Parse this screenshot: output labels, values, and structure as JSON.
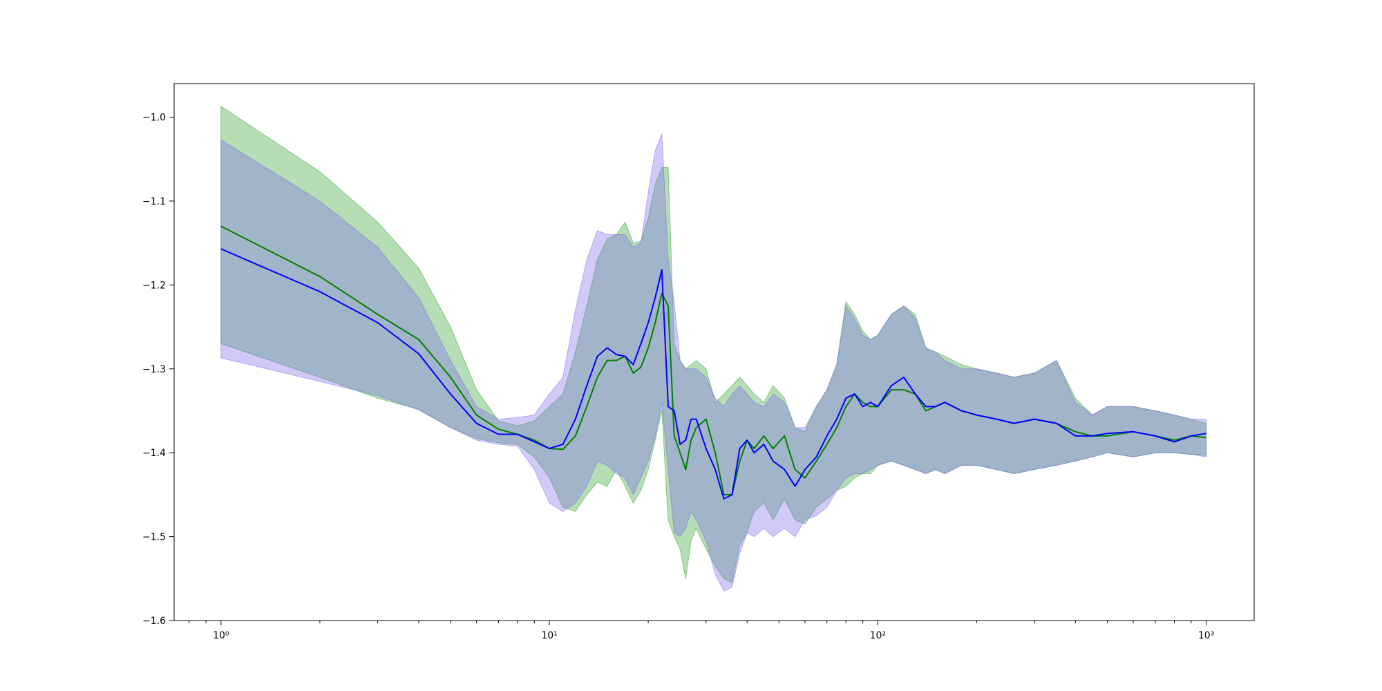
{
  "chart_data": {
    "type": "line",
    "title": "",
    "xlabel": "",
    "ylabel": "",
    "xscale": "log",
    "xlim": [
      0.72,
      1400
    ],
    "ylim": [
      -1.6,
      -0.96
    ],
    "grid": false,
    "legend": "none",
    "x_ticks": [
      {
        "value": 1,
        "label": "10⁰"
      },
      {
        "value": 10,
        "label": "10¹"
      },
      {
        "value": 100,
        "label": "10²"
      },
      {
        "value": 1000,
        "label": "10³"
      }
    ],
    "y_ticks": [
      {
        "value": -1.0,
        "label": "−1.0"
      },
      {
        "value": -1.1,
        "label": "−1.1"
      },
      {
        "value": -1.2,
        "label": "−1.2"
      },
      {
        "value": -1.3,
        "label": "−1.3"
      },
      {
        "value": -1.4,
        "label": "−1.4"
      },
      {
        "value": -1.5,
        "label": "−1.5"
      },
      {
        "value": -1.6,
        "label": "−1.6"
      }
    ],
    "series": [
      {
        "color": "#008000",
        "band_color": "#2ca02c",
        "x": [
          1,
          2,
          3,
          4,
          5,
          6,
          7,
          8,
          9,
          10,
          11,
          12,
          13,
          14,
          15,
          16,
          17,
          18,
          19,
          20,
          21,
          22,
          23,
          24,
          25,
          26,
          27,
          28,
          30,
          32,
          34,
          36,
          38,
          40,
          42,
          45,
          48,
          52,
          56,
          60,
          65,
          70,
          75,
          80,
          85,
          90,
          95,
          100,
          110,
          120,
          130,
          140,
          150,
          160,
          180,
          200,
          230,
          260,
          300,
          350,
          400,
          450,
          500,
          600,
          700,
          800,
          900,
          1000
        ],
        "values": [
          -1.13,
          -1.19,
          -1.235,
          -1.265,
          -1.31,
          -1.355,
          -1.372,
          -1.378,
          -1.385,
          -1.395,
          -1.396,
          -1.38,
          -1.345,
          -1.31,
          -1.29,
          -1.29,
          -1.285,
          -1.305,
          -1.298,
          -1.275,
          -1.245,
          -1.21,
          -1.225,
          -1.38,
          -1.4,
          -1.42,
          -1.385,
          -1.37,
          -1.36,
          -1.4,
          -1.45,
          -1.45,
          -1.41,
          -1.385,
          -1.395,
          -1.38,
          -1.395,
          -1.38,
          -1.42,
          -1.43,
          -1.41,
          -1.39,
          -1.37,
          -1.345,
          -1.33,
          -1.34,
          -1.345,
          -1.345,
          -1.325,
          -1.325,
          -1.33,
          -1.35,
          -1.345,
          -1.34,
          -1.35,
          -1.355,
          -1.36,
          -1.365,
          -1.36,
          -1.365,
          -1.375,
          -1.38,
          -1.38,
          -1.375,
          -1.38,
          -1.385,
          -1.38,
          -1.382
        ],
        "lower": [
          -1.27,
          -1.31,
          -1.335,
          -1.348,
          -1.37,
          -1.383,
          -1.388,
          -1.39,
          -1.405,
          -1.43,
          -1.465,
          -1.47,
          -1.45,
          -1.435,
          -1.44,
          -1.42,
          -1.44,
          -1.46,
          -1.445,
          -1.42,
          -1.385,
          -1.35,
          -1.48,
          -1.5,
          -1.515,
          -1.55,
          -1.505,
          -1.49,
          -1.515,
          -1.535,
          -1.55,
          -1.555,
          -1.51,
          -1.495,
          -1.47,
          -1.46,
          -1.48,
          -1.455,
          -1.48,
          -1.485,
          -1.465,
          -1.455,
          -1.445,
          -1.44,
          -1.43,
          -1.425,
          -1.425,
          -1.415,
          -1.41,
          -1.415,
          -1.42,
          -1.425,
          -1.42,
          -1.425,
          -1.415,
          -1.415,
          -1.42,
          -1.425,
          -1.42,
          -1.415,
          -1.41,
          -1.405,
          -1.4,
          -1.405,
          -1.4,
          -1.4,
          -1.402,
          -1.403
        ],
        "upper": [
          -0.987,
          -1.065,
          -1.125,
          -1.18,
          -1.25,
          -1.325,
          -1.362,
          -1.368,
          -1.362,
          -1.345,
          -1.33,
          -1.28,
          -1.225,
          -1.17,
          -1.145,
          -1.14,
          -1.125,
          -1.15,
          -1.148,
          -1.12,
          -1.08,
          -1.06,
          -1.06,
          -1.27,
          -1.29,
          -1.3,
          -1.295,
          -1.29,
          -1.3,
          -1.34,
          -1.33,
          -1.32,
          -1.31,
          -1.32,
          -1.33,
          -1.34,
          -1.32,
          -1.335,
          -1.37,
          -1.375,
          -1.345,
          -1.325,
          -1.295,
          -1.22,
          -1.235,
          -1.255,
          -1.265,
          -1.26,
          -1.235,
          -1.225,
          -1.235,
          -1.275,
          -1.28,
          -1.285,
          -1.295,
          -1.3,
          -1.305,
          -1.31,
          -1.305,
          -1.29,
          -1.335,
          -1.355,
          -1.345,
          -1.345,
          -1.35,
          -1.355,
          -1.36,
          -1.365
        ]
      },
      {
        "color": "#0000ff",
        "band_color": "#7b68ee",
        "x": [
          1,
          2,
          3,
          4,
          5,
          6,
          7,
          8,
          9,
          10,
          11,
          12,
          13,
          14,
          15,
          16,
          17,
          18,
          19,
          20,
          21,
          22,
          23,
          24,
          25,
          26,
          27,
          28,
          30,
          32,
          34,
          36,
          38,
          40,
          42,
          45,
          48,
          52,
          56,
          60,
          65,
          70,
          75,
          80,
          85,
          90,
          95,
          100,
          110,
          120,
          130,
          140,
          150,
          160,
          180,
          200,
          230,
          260,
          300,
          350,
          400,
          450,
          500,
          600,
          700,
          800,
          900,
          1000
        ],
        "values": [
          -1.157,
          -1.208,
          -1.245,
          -1.282,
          -1.33,
          -1.365,
          -1.378,
          -1.378,
          -1.387,
          -1.395,
          -1.39,
          -1.36,
          -1.32,
          -1.285,
          -1.275,
          -1.283,
          -1.285,
          -1.295,
          -1.27,
          -1.245,
          -1.215,
          -1.182,
          -1.345,
          -1.35,
          -1.39,
          -1.385,
          -1.36,
          -1.36,
          -1.395,
          -1.42,
          -1.455,
          -1.45,
          -1.395,
          -1.385,
          -1.4,
          -1.39,
          -1.41,
          -1.42,
          -1.44,
          -1.42,
          -1.405,
          -1.38,
          -1.36,
          -1.335,
          -1.33,
          -1.345,
          -1.34,
          -1.345,
          -1.32,
          -1.31,
          -1.33,
          -1.345,
          -1.345,
          -1.34,
          -1.35,
          -1.355,
          -1.36,
          -1.365,
          -1.36,
          -1.365,
          -1.38,
          -1.38,
          -1.377,
          -1.375,
          -1.38,
          -1.387,
          -1.38,
          -1.377
        ],
        "lower": [
          -1.287,
          -1.315,
          -1.332,
          -1.349,
          -1.37,
          -1.385,
          -1.39,
          -1.392,
          -1.42,
          -1.46,
          -1.47,
          -1.46,
          -1.44,
          -1.41,
          -1.415,
          -1.425,
          -1.43,
          -1.45,
          -1.43,
          -1.41,
          -1.38,
          -1.34,
          -1.42,
          -1.495,
          -1.5,
          -1.49,
          -1.47,
          -1.48,
          -1.505,
          -1.545,
          -1.565,
          -1.56,
          -1.52,
          -1.495,
          -1.5,
          -1.49,
          -1.5,
          -1.49,
          -1.5,
          -1.48,
          -1.475,
          -1.465,
          -1.445,
          -1.43,
          -1.425,
          -1.425,
          -1.42,
          -1.415,
          -1.41,
          -1.415,
          -1.42,
          -1.425,
          -1.42,
          -1.425,
          -1.415,
          -1.415,
          -1.42,
          -1.425,
          -1.42,
          -1.415,
          -1.41,
          -1.405,
          -1.4,
          -1.405,
          -1.4,
          -1.4,
          -1.402,
          -1.405
        ],
        "upper": [
          -1.027,
          -1.1,
          -1.155,
          -1.215,
          -1.29,
          -1.345,
          -1.36,
          -1.358,
          -1.355,
          -1.33,
          -1.31,
          -1.23,
          -1.17,
          -1.135,
          -1.14,
          -1.14,
          -1.14,
          -1.155,
          -1.15,
          -1.09,
          -1.04,
          -1.02,
          -1.17,
          -1.22,
          -1.29,
          -1.3,
          -1.3,
          -1.3,
          -1.31,
          -1.335,
          -1.345,
          -1.33,
          -1.32,
          -1.33,
          -1.34,
          -1.345,
          -1.33,
          -1.34,
          -1.37,
          -1.37,
          -1.345,
          -1.325,
          -1.295,
          -1.225,
          -1.24,
          -1.26,
          -1.265,
          -1.26,
          -1.235,
          -1.225,
          -1.24,
          -1.275,
          -1.28,
          -1.29,
          -1.3,
          -1.3,
          -1.305,
          -1.31,
          -1.305,
          -1.29,
          -1.34,
          -1.355,
          -1.345,
          -1.345,
          -1.35,
          -1.355,
          -1.36,
          -1.36
        ]
      }
    ]
  }
}
